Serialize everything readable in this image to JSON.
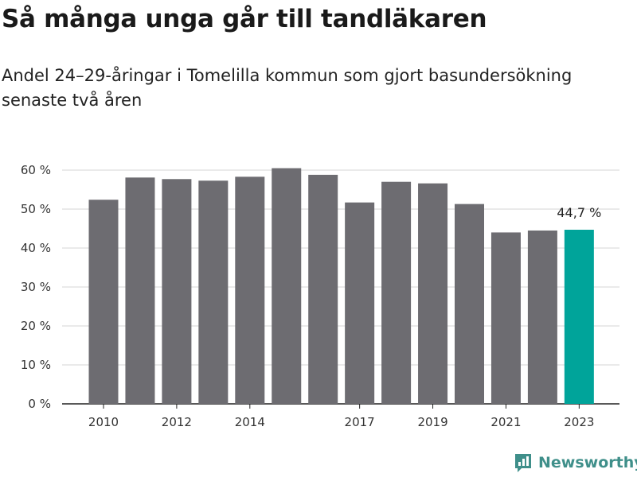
{
  "title": "Så många unga går till tandläkaren",
  "subtitle": "Andel 24–29-åringar i Tomelilla kommun som gjort basundersökning senaste två åren",
  "brand": "Newsworthy",
  "colors": {
    "bar": "#6d6c71",
    "highlight": "#00a49a",
    "grid": "#dddddd",
    "brand": "#3f8f8a"
  },
  "chart_data": {
    "type": "bar",
    "categories": [
      "2010",
      "2011",
      "2012",
      "2013",
      "2014",
      "2015",
      "2016",
      "2017",
      "2018",
      "2019",
      "2020",
      "2021",
      "2022",
      "2023"
    ],
    "values": [
      52.4,
      58.1,
      57.7,
      57.3,
      58.3,
      60.5,
      58.8,
      51.7,
      57.0,
      56.6,
      51.3,
      44.0,
      44.5,
      44.7
    ],
    "x_tick_labels": [
      "2010",
      "2012",
      "2014",
      "2017",
      "2019",
      "2021",
      "2023"
    ],
    "y_ticks": [
      "0 %",
      "10 %",
      "20 %",
      "30 %",
      "40 %",
      "50 %",
      "60 %"
    ],
    "ylim": [
      0,
      60
    ],
    "highlight_category": "2023",
    "data_label": "44,7 %",
    "grid": true
  }
}
